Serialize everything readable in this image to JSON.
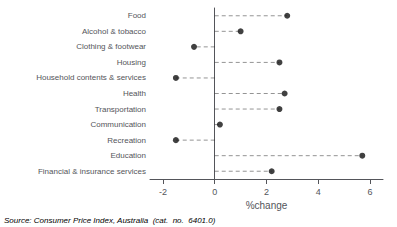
{
  "chart_data": {
    "type": "dot",
    "orientation": "horizontal",
    "categories": [
      "Food",
      "Alcohol & tobacco",
      "Clothing & footwear",
      "Housing",
      "Household contents & services",
      "Health",
      "Transportation",
      "Communication",
      "Recreation",
      "Education",
      "Financial & insurance services"
    ],
    "values": [
      2.8,
      1.0,
      -0.8,
      2.5,
      -1.5,
      2.7,
      2.5,
      0.2,
      -1.5,
      5.7,
      2.2
    ],
    "color": "#111111",
    "marker": "circle",
    "line_style": "dashed",
    "xlim": [
      -2.5,
      6.5
    ],
    "xticks": [
      -2,
      0,
      2,
      4,
      6
    ],
    "xlabel": "%change",
    "annotation": "Source: Consumer Price Index, Australia  (cat.  no.  6401.0)",
    "grid": false
  }
}
